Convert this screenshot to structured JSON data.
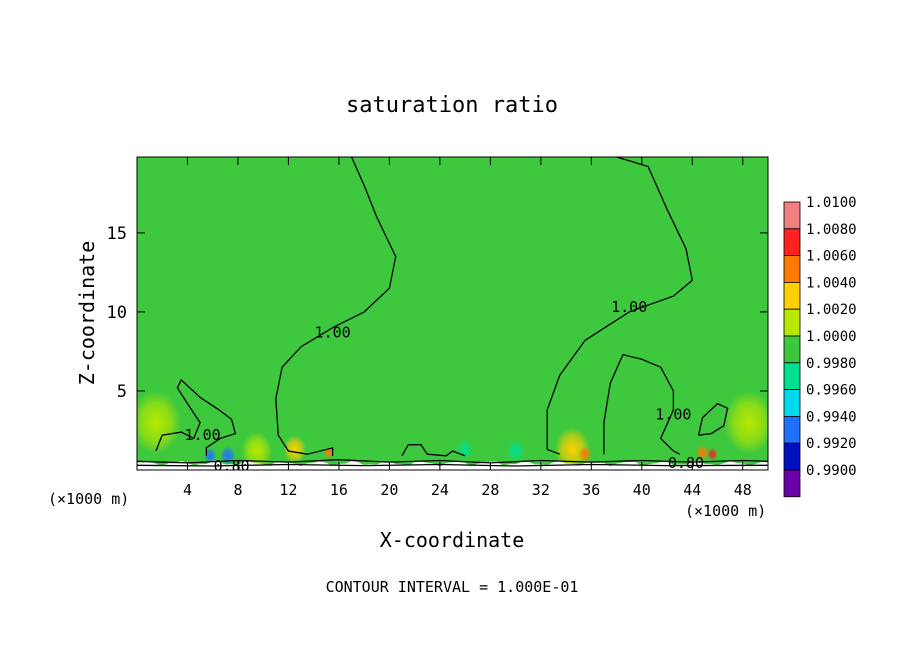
{
  "chart_data": {
    "type": "heatmap",
    "title": "saturation ratio",
    "xlabel": "X-coordinate",
    "ylabel": "Z-coordinate",
    "x_unit": "(×1000 m)",
    "x_unit_right": "(×1000 m)",
    "xlim": [
      0,
      50
    ],
    "ylim": [
      0,
      19.8
    ],
    "x_ticks": [
      4,
      8,
      12,
      16,
      20,
      24,
      28,
      32,
      36,
      40,
      44,
      48
    ],
    "y_ticks": [
      5,
      10,
      15
    ],
    "footer": "CONTOUR INTERVAL = 1.000E-01",
    "background_value": 1.001,
    "colorbar": {
      "labels": [
        "1.0100",
        "1.0080",
        "1.0060",
        "1.0040",
        "1.0020",
        "1.0000",
        "0.9980",
        "0.9960",
        "0.9940",
        "0.9920",
        "0.9900"
      ],
      "colors": [
        "#f08080",
        "#ff2020",
        "#ff7a00",
        "#ffd000",
        "#b8e800",
        "#3ec83e",
        "#00e090",
        "#00d8ec",
        "#2070ff",
        "#0010c0",
        "#6a00a8"
      ]
    },
    "contours": [
      {
        "label": "1.00",
        "points": [
          [
            17.0,
            19.8
          ],
          [
            18.0,
            18.0
          ],
          [
            19.0,
            16.0
          ],
          [
            20.5,
            13.5
          ],
          [
            20.0,
            11.5
          ],
          [
            18.0,
            10.0
          ],
          [
            15.5,
            9.0
          ],
          [
            13.0,
            7.8
          ],
          [
            11.5,
            6.5
          ],
          [
            11.0,
            4.5
          ],
          [
            11.2,
            2.2
          ],
          [
            12.0,
            1.2
          ],
          [
            13.5,
            1.0
          ],
          [
            15.5,
            1.4
          ],
          [
            15.5,
            0.9
          ]
        ],
        "label_pos": [
          15.5,
          8.7
        ]
      },
      {
        "label": "1.00",
        "points": [
          [
            38.0,
            19.8
          ],
          [
            40.5,
            19.2
          ],
          [
            42.0,
            16.5
          ],
          [
            43.5,
            14.0
          ],
          [
            44.0,
            12.0
          ],
          [
            42.5,
            11.0
          ],
          [
            39.0,
            10.0
          ],
          [
            35.5,
            8.2
          ],
          [
            33.5,
            6.0
          ],
          [
            32.5,
            3.8
          ],
          [
            32.5,
            1.3
          ],
          [
            33.5,
            1.0
          ]
        ],
        "label_pos": [
          39.0,
          10.3
        ]
      },
      {
        "label": "1.00",
        "points": [
          [
            1.5,
            1.2
          ],
          [
            2.0,
            2.2
          ],
          [
            3.5,
            2.4
          ],
          [
            4.5,
            2.0
          ],
          [
            5.0,
            3.0
          ],
          [
            4.0,
            4.2
          ],
          [
            3.2,
            5.2
          ],
          [
            3.5,
            5.7
          ],
          [
            5.0,
            4.6
          ],
          [
            6.5,
            3.8
          ],
          [
            7.5,
            3.2
          ],
          [
            7.8,
            2.3
          ],
          [
            6.6,
            2.0
          ],
          [
            5.5,
            1.4
          ],
          [
            5.5,
            0.9
          ]
        ],
        "label_pos": [
          5.2,
          2.2
        ]
      },
      {
        "label": "1.00",
        "points": [
          [
            37.0,
            1.0
          ],
          [
            37.0,
            3.0
          ],
          [
            37.5,
            5.5
          ],
          [
            38.5,
            7.3
          ],
          [
            40.0,
            7.0
          ],
          [
            41.5,
            6.5
          ],
          [
            42.5,
            5.0
          ],
          [
            42.5,
            3.8
          ],
          [
            41.5,
            2.0
          ],
          [
            42.5,
            1.2
          ],
          [
            43.0,
            1.0
          ]
        ],
        "label_pos": [
          42.5,
          3.5
        ]
      },
      {
        "label": "1.00",
        "points": [
          [
            44.5,
            2.2
          ],
          [
            44.8,
            3.3
          ],
          [
            46.0,
            4.2
          ],
          [
            46.8,
            3.9
          ],
          [
            46.5,
            2.8
          ],
          [
            45.5,
            2.3
          ],
          [
            44.5,
            2.2
          ]
        ],
        "label_pos": null
      },
      {
        "label": "1.00",
        "points": [
          [
            21.0,
            0.9
          ],
          [
            21.5,
            1.6
          ],
          [
            22.5,
            1.6
          ],
          [
            23.0,
            1.0
          ],
          [
            24.5,
            0.9
          ],
          [
            25.0,
            1.2
          ],
          [
            26.0,
            0.9
          ]
        ],
        "label_pos": null
      },
      {
        "label": "0.80",
        "points": [
          [
            0,
            0.55
          ],
          [
            4,
            0.45
          ],
          [
            8,
            0.6
          ],
          [
            12,
            0.5
          ],
          [
            16,
            0.65
          ],
          [
            20,
            0.5
          ],
          [
            24,
            0.6
          ],
          [
            28,
            0.45
          ],
          [
            32,
            0.6
          ],
          [
            36,
            0.5
          ],
          [
            40,
            0.6
          ],
          [
            44,
            0.5
          ],
          [
            48,
            0.6
          ],
          [
            50,
            0.55
          ]
        ],
        "label_pos": [
          7.5,
          0.25
        ]
      },
      {
        "label": "0.80",
        "points": [
          [
            0,
            0.3
          ],
          [
            6,
            0.25
          ],
          [
            12,
            0.35
          ],
          [
            18,
            0.28
          ],
          [
            24,
            0.35
          ],
          [
            30,
            0.25
          ],
          [
            36,
            0.35
          ],
          [
            42,
            0.28
          ],
          [
            50,
            0.3
          ]
        ],
        "label_pos": [
          43.5,
          0.45
        ]
      }
    ],
    "hotspots": [
      {
        "x": 9.5,
        "z": 1.2,
        "r": 1.2,
        "value": 1.003
      },
      {
        "x": 12.5,
        "z": 1.3,
        "r": 0.9,
        "value": 1.004
      },
      {
        "x": 15.2,
        "z": 1.1,
        "r": 0.4,
        "value": 1.007
      },
      {
        "x": 5.8,
        "z": 0.9,
        "r": 0.5,
        "value": 0.994
      },
      {
        "x": 7.2,
        "z": 0.9,
        "r": 0.6,
        "value": 0.993
      },
      {
        "x": 34.5,
        "z": 1.3,
        "r": 1.4,
        "value": 1.004
      },
      {
        "x": 35.5,
        "z": 1.0,
        "r": 0.5,
        "value": 1.007
      },
      {
        "x": 44.8,
        "z": 1.1,
        "r": 0.5,
        "value": 1.006
      },
      {
        "x": 45.6,
        "z": 1.0,
        "r": 0.4,
        "value": 1.008
      },
      {
        "x": 1.5,
        "z": 3.0,
        "r": 2.0,
        "value": 1.0015
      },
      {
        "x": 48.5,
        "z": 3.0,
        "r": 2.0,
        "value": 1.0015
      },
      {
        "x": 19.0,
        "z": 2.5,
        "r": 1.5,
        "value": 0.9995
      },
      {
        "x": 28.0,
        "z": 2.5,
        "r": 1.5,
        "value": 0.999
      },
      {
        "x": 30.0,
        "z": 1.2,
        "r": 0.7,
        "value": 0.997
      },
      {
        "x": 26.0,
        "z": 1.3,
        "r": 0.6,
        "value": 0.9975
      }
    ]
  }
}
